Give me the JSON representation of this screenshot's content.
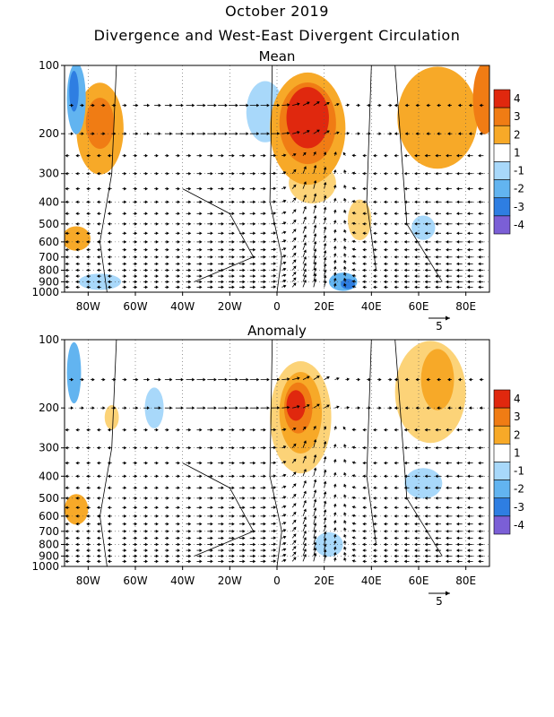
{
  "header": {
    "title": "October 2019",
    "subtitle": "Divergence and West-East Divergent Circulation"
  },
  "colors": {
    "c4": "#e0280e",
    "c3": "#f07c14",
    "c2": "#f7a928",
    "c1": "#fcd378",
    "n1": "#a8d8fa",
    "n2": "#62b4f0",
    "n3": "#2e7ee2",
    "n4": "#7b5fd6",
    "contour": "#000000"
  },
  "chart_data": [
    {
      "type": "heatmap",
      "title": "Mean",
      "x_ticks": [
        "80W",
        "60W",
        "40W",
        "20W",
        "0",
        "20E",
        "40E",
        "60E",
        "80E"
      ],
      "x_tick_values": [
        -80,
        -60,
        -40,
        -20,
        0,
        20,
        40,
        60,
        80
      ],
      "xlim": [
        -90,
        90
      ],
      "y_ticks": [
        "100",
        "200",
        "300",
        "400",
        "500",
        "600",
        "700",
        "800",
        "900",
        "1000"
      ],
      "y_tick_values": [
        100,
        200,
        300,
        400,
        500,
        600,
        700,
        800,
        900,
        1000
      ],
      "ylim": [
        1000,
        100
      ],
      "y_scale": "log",
      "colorbar": {
        "levels": [
          "4",
          "3",
          "2",
          "1",
          "-1",
          "-2",
          "-3",
          "-4"
        ]
      },
      "vector_scale_label": "5",
      "blobs": [
        {
          "lon": -75,
          "p": 190,
          "rx": 10,
          "ry": 0.45,
          "level": 2
        },
        {
          "lon": -75,
          "p": 180,
          "rx": 6,
          "ry": 0.25,
          "level": 3
        },
        {
          "lon": -85,
          "p": 140,
          "rx": 4,
          "ry": 0.35,
          "level": -2
        },
        {
          "lon": -86,
          "p": 130,
          "rx": 2,
          "ry": 0.2,
          "level": -3
        },
        {
          "lon": -5,
          "p": 160,
          "rx": 8,
          "ry": 0.3,
          "level": -1
        },
        {
          "lon": 13,
          "p": 190,
          "rx": 16,
          "ry": 0.55,
          "level": 2
        },
        {
          "lon": 13,
          "p": 180,
          "rx": 12,
          "ry": 0.4,
          "level": 3
        },
        {
          "lon": 13,
          "p": 170,
          "rx": 9,
          "ry": 0.3,
          "level": 4
        },
        {
          "lon": 15,
          "p": 330,
          "rx": 10,
          "ry": 0.2,
          "level": 1
        },
        {
          "lon": 68,
          "p": 170,
          "rx": 17,
          "ry": 0.5,
          "level": 2
        },
        {
          "lon": 88,
          "p": 140,
          "rx": 5,
          "ry": 0.35,
          "level": 3
        },
        {
          "lon": -85,
          "p": 580,
          "rx": 6,
          "ry": 0.12,
          "level": 2
        },
        {
          "lon": 35,
          "p": 480,
          "rx": 5,
          "ry": 0.2,
          "level": 1
        },
        {
          "lon": 62,
          "p": 520,
          "rx": 5,
          "ry": 0.12,
          "level": -1
        },
        {
          "lon": -75,
          "p": 900,
          "rx": 9,
          "ry": 0.08,
          "level": -1
        },
        {
          "lon": 28,
          "p": 900,
          "rx": 6,
          "ry": 0.09,
          "level": -2
        },
        {
          "lon": 30,
          "p": 920,
          "rx": 3,
          "ry": 0.05,
          "level": -3
        }
      ]
    },
    {
      "type": "heatmap",
      "title": "Anomaly",
      "x_ticks": [
        "80W",
        "60W",
        "40W",
        "20W",
        "0",
        "20E",
        "40E",
        "60E",
        "80E"
      ],
      "x_tick_values": [
        -80,
        -60,
        -40,
        -20,
        0,
        20,
        40,
        60,
        80
      ],
      "xlim": [
        -90,
        90
      ],
      "y_ticks": [
        "100",
        "200",
        "300",
        "400",
        "500",
        "600",
        "700",
        "800",
        "900",
        "1000"
      ],
      "y_tick_values": [
        100,
        200,
        300,
        400,
        500,
        600,
        700,
        800,
        900,
        1000
      ],
      "ylim": [
        1000,
        100
      ],
      "y_scale": "log",
      "colorbar": {
        "levels": [
          "4",
          "3",
          "2",
          "1",
          "-1",
          "-2",
          "-3",
          "-4"
        ]
      },
      "vector_scale_label": "5",
      "blobs": [
        {
          "lon": 10,
          "p": 220,
          "rx": 13,
          "ry": 0.55,
          "level": 1
        },
        {
          "lon": 10,
          "p": 210,
          "rx": 9,
          "ry": 0.4,
          "level": 2
        },
        {
          "lon": 9,
          "p": 200,
          "rx": 6,
          "ry": 0.25,
          "level": 3
        },
        {
          "lon": 8,
          "p": 195,
          "rx": 4,
          "ry": 0.15,
          "level": 4
        },
        {
          "lon": 65,
          "p": 170,
          "rx": 15,
          "ry": 0.5,
          "level": 1
        },
        {
          "lon": 68,
          "p": 150,
          "rx": 7,
          "ry": 0.3,
          "level": 2
        },
        {
          "lon": -86,
          "p": 140,
          "rx": 3,
          "ry": 0.3,
          "level": -2
        },
        {
          "lon": -70,
          "p": 220,
          "rx": 3,
          "ry": 0.12,
          "level": 1
        },
        {
          "lon": -52,
          "p": 200,
          "rx": 4,
          "ry": 0.2,
          "level": -1
        },
        {
          "lon": 62,
          "p": 430,
          "rx": 8,
          "ry": 0.15,
          "level": -1
        },
        {
          "lon": -85,
          "p": 560,
          "rx": 5,
          "ry": 0.15,
          "level": 2
        },
        {
          "lon": 22,
          "p": 800,
          "rx": 6,
          "ry": 0.12,
          "level": -1
        }
      ]
    }
  ]
}
